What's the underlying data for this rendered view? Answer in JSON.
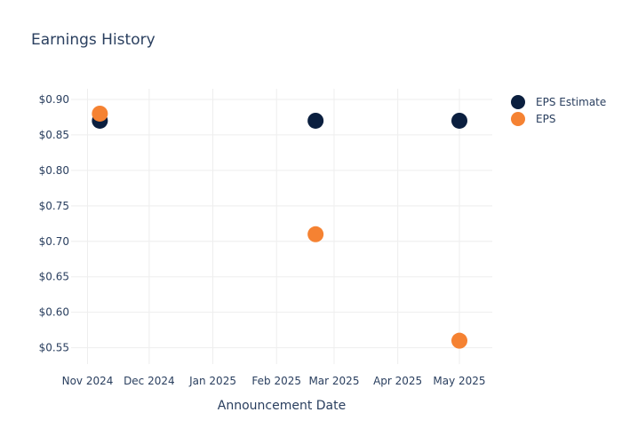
{
  "chart_data": {
    "type": "scatter",
    "title": "Earnings History",
    "xlabel": "Announcement Date",
    "ylabel": "",
    "x_tick_labels": [
      "Nov 2024",
      "Dec 2024",
      "Jan 2025",
      "Feb 2025",
      "Mar 2025",
      "Apr 2025",
      "May 2025"
    ],
    "x_tick_dates": [
      "2024-11-01",
      "2024-12-01",
      "2025-01-01",
      "2025-02-01",
      "2025-03-01",
      "2025-04-01",
      "2025-05-01"
    ],
    "xlim": [
      "2024-10-24",
      "2025-05-17"
    ],
    "y_tick_labels": [
      "$0.55",
      "$0.60",
      "$0.65",
      "$0.70",
      "$0.75",
      "$0.80",
      "$0.85",
      "$0.90"
    ],
    "y_tick_values": [
      0.55,
      0.6,
      0.65,
      0.7,
      0.75,
      0.8,
      0.85,
      0.9
    ],
    "ylim": [
      0.527,
      0.915
    ],
    "grid": true,
    "legend_position": "top-right",
    "series": [
      {
        "name": "EPS Estimate",
        "color": "#0b1f3f",
        "x": [
          "2024-11-07",
          "2025-02-20",
          "2025-05-01"
        ],
        "y": [
          0.87,
          0.87,
          0.87
        ]
      },
      {
        "name": "EPS",
        "color": "#f58232",
        "x": [
          "2024-11-07",
          "2025-02-20",
          "2025-05-01"
        ],
        "y": [
          0.88,
          0.71,
          0.56
        ]
      }
    ]
  }
}
